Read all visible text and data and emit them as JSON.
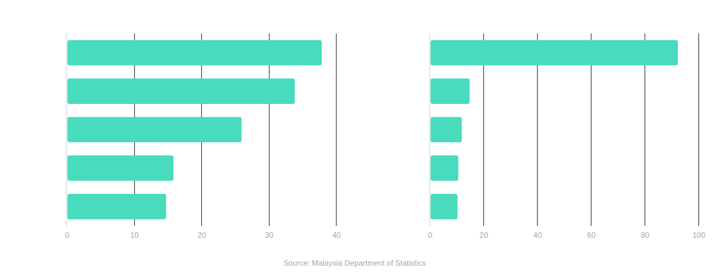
{
  "chart_data": [
    {
      "type": "bar",
      "orientation": "horizontal",
      "categories": [
        null,
        null,
        null,
        null,
        null
      ],
      "values": [
        37.8,
        33.8,
        25.9,
        15.8,
        14.7
      ],
      "color": "#48dbbd",
      "xlim": [
        0,
        40
      ],
      "xticks": [
        0,
        10,
        20,
        30,
        40
      ],
      "grid": "x",
      "tick_labels": "x",
      "legend": false
    },
    {
      "type": "bar",
      "orientation": "horizontal",
      "categories": [
        null,
        null,
        null,
        null,
        null
      ],
      "values": [
        92.2,
        14.7,
        11.8,
        10.5,
        10.2
      ],
      "color": "#48dbbd",
      "xlim": [
        0,
        100
      ],
      "xticks": [
        0,
        20,
        40,
        60,
        80,
        100
      ],
      "grid": "x",
      "tick_labels": "x",
      "legend": false,
      "annotations": [
        "Source: Malaysia Department of Statistics"
      ]
    }
  ]
}
